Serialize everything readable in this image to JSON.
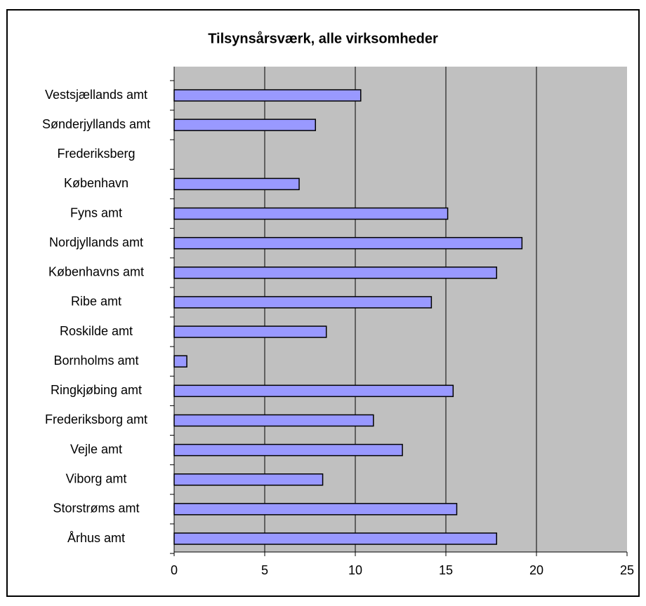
{
  "chart_data": {
    "type": "barh",
    "title": "Tilsynsårsværk, alle virksomheder",
    "categories": [
      "Vestsjællands amt",
      "Sønderjyllands amt",
      "Frederiksberg",
      "København",
      "Fyns amt",
      "Nordjyllands amt",
      "Københavns amt",
      "Ribe amt",
      "Roskilde amt",
      "Bornholms amt",
      "Ringkjøbing amt",
      "Frederiksborg amt",
      "Vejle amt",
      "Viborg amt",
      "Storstrøms amt",
      "Århus amt"
    ],
    "values": [
      10.3,
      7.8,
      null,
      6.9,
      15.1,
      19.2,
      17.8,
      14.2,
      8.4,
      0.7,
      15.4,
      11.0,
      12.6,
      8.2,
      15.6,
      17.8
    ],
    "color": "#9999ff",
    "xlim": [
      0,
      25
    ],
    "xticks": [
      0,
      5,
      10,
      15,
      20,
      25
    ],
    "grid": true
  }
}
